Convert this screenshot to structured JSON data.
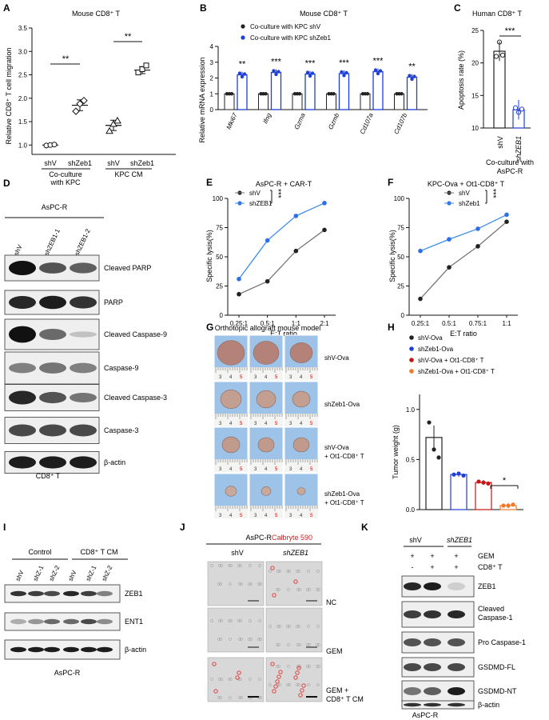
{
  "panel_letters": [
    "A",
    "B",
    "C",
    "D",
    "E",
    "F",
    "G",
    "H",
    "I",
    "J",
    "K"
  ],
  "panelA": {
    "title": "Mouse CD8⁺ T",
    "ylabel": "Relative CD8⁺ T cell migration",
    "yticks": [
      "1.0",
      "1.5",
      "2.0",
      "2.5",
      "3.0",
      "3.5"
    ],
    "xticks": [
      "shV",
      "shZeb1",
      "shV",
      "shZeb1"
    ],
    "group1": "Co-culture",
    "group1b": "with KPC",
    "group2": "KPC CM",
    "sig": [
      "**",
      "**"
    ],
    "chart_data": {
      "type": "bar",
      "categories": [
        "shV",
        "shZeb1",
        "shV",
        "shZeb1"
      ],
      "values": [
        1.0,
        1.85,
        1.42,
        2.6
      ],
      "ylim": [
        0.8,
        3.5
      ],
      "points": [
        [
          0.99,
          1.0,
          1.01
        ],
        [
          1.72,
          1.88,
          1.95
        ],
        [
          1.3,
          1.45,
          1.52
        ],
        [
          2.55,
          2.62,
          2.7
        ]
      ]
    }
  },
  "panelB": {
    "title": "Mouse CD8⁺ T",
    "legend1": "Co-culture with KPC shV",
    "legend2": "Co-culture with KPC shZeb1",
    "ylabel": "Relative mRNA expression",
    "yticks": [
      "0",
      "1",
      "2",
      "3",
      "4"
    ],
    "genes": [
      "Mki67",
      "Ifng",
      "Gzma",
      "Gzmb",
      "Cd107a",
      "Cd107b"
    ],
    "sig": [
      "**",
      "***",
      "***",
      "***",
      "***",
      "**"
    ],
    "chart_data": {
      "type": "bar",
      "categories": [
        "Mki67",
        "Ifng",
        "Gzma",
        "Gzmb",
        "Cd107a",
        "Cd107b"
      ],
      "series": [
        {
          "name": "Co-culture with KPC shV",
          "values": [
            1,
            1,
            1,
            1,
            1,
            1
          ]
        },
        {
          "name": "Co-culture with KPC shZeb1",
          "values": [
            2.2,
            2.35,
            2.25,
            2.28,
            2.4,
            2.05
          ]
        }
      ],
      "ylim": [
        0,
        4
      ]
    }
  },
  "panelC": {
    "title": "Human CD8⁺ T",
    "ylabel": "Apoptosis rate (%)",
    "yticks": [
      "10",
      "15",
      "20",
      "25"
    ],
    "xticks": [
      "shV",
      "shZEB1"
    ],
    "caption1": "Co-culture with",
    "caption2": "AsPC-R",
    "sig": "***",
    "chart_data": {
      "type": "bar",
      "categories": [
        "shV",
        "shZEB1"
      ],
      "values": [
        21.8,
        12.8
      ],
      "ylim": [
        10,
        25
      ]
    }
  },
  "panelD": {
    "header": "AsPC-R",
    "lanes": [
      "shV",
      "shZEB1-1",
      "shZEB1-2"
    ],
    "bands": [
      "Cleaved PARP",
      "PARP",
      "Cleaved Caspase-9",
      "Caspase-9",
      "Cleaved Caspase-3",
      "Caspase-3",
      "β-actin"
    ],
    "footer": "CD8⁺ T"
  },
  "panelE": {
    "title": "AsPC-R + CAR-T",
    "legend": [
      "shV",
      "shZEB1"
    ],
    "sig": "***",
    "ylabel": "Specific lysis(%)",
    "xlabel": "E:T ratio",
    "yticks": [
      "0",
      "25",
      "50",
      "75",
      "100"
    ],
    "chart_data": {
      "type": "line",
      "categories": [
        "0.25:1",
        "0.5:1",
        "1:1",
        "2:1"
      ],
      "series": [
        {
          "name": "shV",
          "values": [
            18,
            29,
            55,
            73
          ]
        },
        {
          "name": "shZEB1",
          "values": [
            31,
            64,
            85,
            96
          ]
        }
      ],
      "ylim": [
        0,
        100
      ]
    }
  },
  "panelF": {
    "title": "KPC-Ova + Ot1-CD8⁺ T",
    "legend": [
      "shV",
      "shZeb1"
    ],
    "sig": "***",
    "ylabel": "Specific lysis(%)",
    "xlabel": "E:T ratio",
    "yticks": [
      "0",
      "25",
      "50",
      "75",
      "100"
    ],
    "chart_data": {
      "type": "line",
      "categories": [
        "0.25:1",
        "0.5:1",
        "0.75:1",
        "1:1"
      ],
      "series": [
        {
          "name": "shV",
          "values": [
            14,
            41,
            59,
            80
          ]
        },
        {
          "name": "shZeb1",
          "values": [
            55,
            65,
            74,
            86
          ]
        }
      ],
      "ylim": [
        0,
        100
      ]
    }
  },
  "panelG": {
    "title": "Orthotopic allograft mouse model",
    "rows": [
      "shV-Ova",
      "shZeb1-Ova",
      "shV-Ova + Ot1-CD8⁺ T",
      "shZeb1-Ova + Ot1-CD8⁺ T"
    ],
    "ruler": [
      "3",
      "4",
      "5"
    ]
  },
  "panelH": {
    "legend": [
      "shV-Ova",
      "shZeb1-Ova",
      "shV-Ova + Ot1-CD8⁺ T",
      "shZeb1-Ova + Ot1-CD8⁺ T"
    ],
    "ylabel": "Tumor weight (g)",
    "yticks": [
      "0.0",
      "0.5",
      "1.0"
    ],
    "sig": "*",
    "chart_data": {
      "type": "bar",
      "categories": [
        "shV-Ova",
        "shZeb1-Ova",
        "shV-Ova + Ot1-CD8⁺ T",
        "shZeb1-Ova + Ot1-CD8⁺ T"
      ],
      "values": [
        0.72,
        0.35,
        0.27,
        0.04
      ],
      "ylim": [
        0,
        1.15
      ],
      "colors": [
        "#222222",
        "#1f3fd6",
        "#c81414",
        "#f07a2a"
      ]
    }
  },
  "panelI": {
    "groups": [
      "Control",
      "CD8⁺ T CM"
    ],
    "lanes": [
      "shV",
      "shZ-1",
      "shZ-2",
      "shV",
      "shZ-1",
      "shZ-2"
    ],
    "bands": [
      "ZEB1",
      "ENT1",
      "β-actin"
    ],
    "footer": "AsPC-R"
  },
  "panelJ": {
    "header1": "AsPC-R ",
    "header2": "Calbryte 590",
    "cols": [
      "shV",
      "shZEB1"
    ],
    "rows": [
      "NC",
      "GEM",
      "GEM +",
      "CD8⁺ T CM"
    ]
  },
  "panelK": {
    "groups": [
      "shV",
      "shZEB1"
    ],
    "gem_label": "GEM",
    "cd8_label": "CD8⁺ T",
    "gem_signs": [
      "+",
      "+",
      "+"
    ],
    "cd8_signs": [
      "-",
      "+",
      "+"
    ],
    "bands": [
      "ZEB1",
      "Cleaved Caspase-1",
      "Pro Caspase-1",
      "GSDMD-FL",
      "GSDMD-NT",
      "β-actin"
    ],
    "footer": "AsPC-R"
  }
}
